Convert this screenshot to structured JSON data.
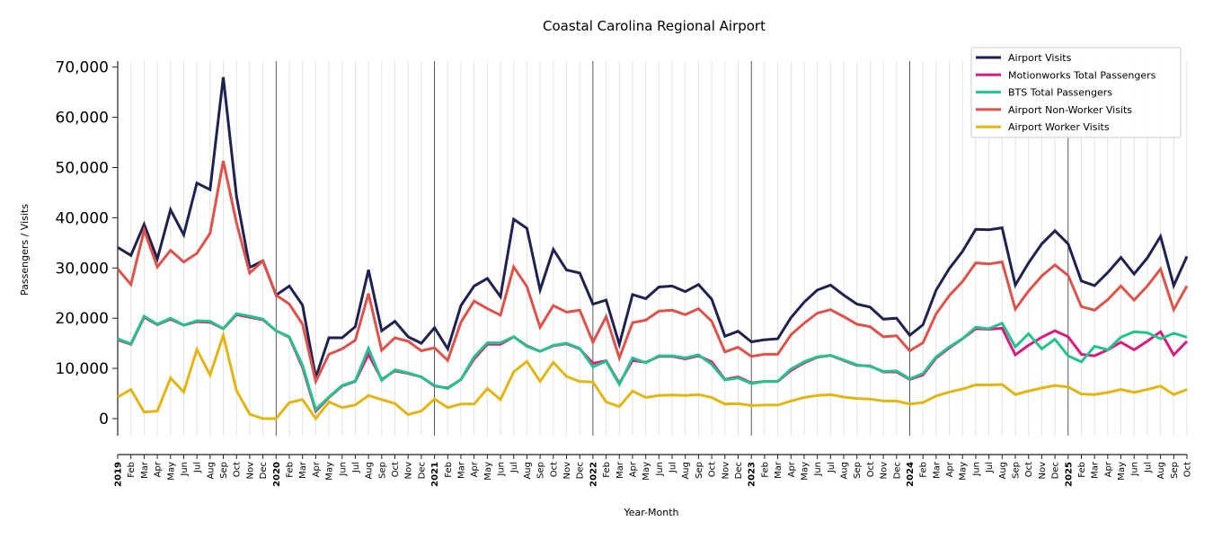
{
  "chart_data": {
    "type": "line",
    "title": "Coastal Carolina Regional Airport",
    "xlabel": "Year-Month",
    "ylabel": "Passengers / Visits",
    "ylim": [
      -3400,
      71200
    ],
    "yticks": [
      0,
      10000,
      20000,
      30000,
      40000,
      50000,
      60000,
      70000
    ],
    "ytick_labels": [
      "0",
      "10,000",
      "20,000",
      "30,000",
      "40,000",
      "50,000",
      "60,000",
      "70,000"
    ],
    "grid": "vertical-monthly",
    "legend_position": "top-right",
    "year_labels": [
      "2019",
      "2020",
      "2021",
      "2022",
      "2023",
      "2024",
      "2025"
    ],
    "x": [
      "2019",
      "Feb",
      "Mar",
      "Apr",
      "May",
      "Jun",
      "Jul",
      "Aug",
      "Sep",
      "Oct",
      "Nov",
      "Dec",
      "2020",
      "Feb",
      "Mar",
      "Apr",
      "May",
      "Jun",
      "Jul",
      "Aug",
      "Sep",
      "Oct",
      "Nov",
      "Dec",
      "2021",
      "Feb",
      "Mar",
      "Apr",
      "May",
      "Jun",
      "Jul",
      "Aug",
      "Sep",
      "Oct",
      "Nov",
      "Dec",
      "2022",
      "Feb",
      "Mar",
      "Apr",
      "May",
      "Jun",
      "Jul",
      "Aug",
      "Sep",
      "Oct",
      "Nov",
      "Dec",
      "2023",
      "Feb",
      "Mar",
      "Apr",
      "May",
      "Jun",
      "Jul",
      "Aug",
      "Sep",
      "Oct",
      "Nov",
      "Dec",
      "2024",
      "Feb",
      "Mar",
      "Apr",
      "May",
      "Jun",
      "Jul",
      "Aug",
      "Sep",
      "Oct",
      "Nov",
      "Dec",
      "2025",
      "Feb",
      "Mar",
      "Apr",
      "May",
      "Jun",
      "Jul",
      "Aug",
      "Sep",
      "Oct"
    ],
    "series": [
      {
        "name": "Airport Visits",
        "color": "#1f2150",
        "values": [
          34100,
          32500,
          38700,
          31800,
          41600,
          36600,
          46900,
          45600,
          68000,
          44300,
          30100,
          31400,
          24600,
          26400,
          22600,
          8200,
          16100,
          16100,
          18300,
          29600,
          17500,
          19400,
          16300,
          15000,
          18100,
          13900,
          22500,
          26400,
          27900,
          24300,
          39700,
          37900,
          25600,
          33700,
          29600,
          29000,
          22800,
          23600,
          14800,
          24700,
          23900,
          26200,
          26400,
          25300,
          26700,
          23800,
          16400,
          17400,
          15300,
          15700,
          15900,
          20100,
          23200,
          25600,
          26600,
          24600,
          22800,
          22200,
          19800,
          20000,
          16600,
          18700,
          25600,
          29900,
          33300,
          37700,
          37600,
          38000,
          26600,
          31000,
          34800,
          37400,
          34800,
          27400,
          26500,
          29100,
          32100,
          28800,
          32000,
          36300,
          26500,
          32300
        ]
      },
      {
        "name": "Motionworks Total Passengers",
        "color": "#d81b7f",
        "values": [
          15700,
          14800,
          20200,
          18700,
          19800,
          18600,
          19300,
          19200,
          17900,
          20700,
          20200,
          19700,
          17500,
          16200,
          10200,
          1500,
          4200,
          6500,
          7400,
          12800,
          7800,
          9500,
          9000,
          8300,
          6500,
          6100,
          7800,
          11900,
          14800,
          14800,
          16300,
          14500,
          13400,
          14500,
          14900,
          13900,
          11000,
          11500,
          7000,
          11600,
          11200,
          12400,
          12400,
          11900,
          12500,
          11300,
          7800,
          8300,
          7100,
          7400,
          7400,
          9600,
          11100,
          12200,
          12600,
          11600,
          10600,
          10500,
          9300,
          9300,
          7800,
          8700,
          12100,
          14100,
          15900,
          17900,
          17800,
          18000,
          12700,
          14600,
          16200,
          17500,
          16300,
          12800,
          12500,
          13700,
          15200,
          13700,
          15400,
          17300,
          12700,
          15400
        ]
      },
      {
        "name": "BTS Total Passengers",
        "color": "#26c28e",
        "values": [
          15900,
          14900,
          20400,
          18800,
          20000,
          18600,
          19500,
          19400,
          17900,
          20900,
          20400,
          19800,
          17500,
          16300,
          10600,
          1800,
          4300,
          6600,
          7500,
          14000,
          7600,
          9700,
          9100,
          8300,
          6600,
          6000,
          7800,
          12300,
          15100,
          15100,
          16300,
          14400,
          13400,
          14600,
          15000,
          14000,
          10300,
          11400,
          6800,
          12100,
          11100,
          12500,
          12500,
          12100,
          12700,
          10800,
          7700,
          8100,
          7000,
          7400,
          7400,
          9900,
          11300,
          12300,
          12600,
          11700,
          10700,
          10400,
          9400,
          9500,
          7900,
          9000,
          12300,
          14300,
          15900,
          18200,
          17900,
          19000,
          14300,
          16900,
          13900,
          15800,
          12500,
          11300,
          14400,
          13700,
          16200,
          17300,
          17100,
          15900,
          17000,
          16200
        ]
      },
      {
        "name": "Airport Non-Worker Visits",
        "color": "#de524b",
        "values": [
          29800,
          26700,
          37500,
          30200,
          33500,
          31200,
          32900,
          36900,
          51300,
          39000,
          29000,
          31400,
          24600,
          22800,
          18800,
          7400,
          12800,
          13900,
          15600,
          24900,
          13600,
          16100,
          15400,
          13500,
          14100,
          11600,
          19200,
          23400,
          21900,
          20600,
          30200,
          26300,
          18200,
          22500,
          21200,
          21600,
          15200,
          20300,
          12100,
          19100,
          19600,
          21400,
          21600,
          20700,
          21900,
          19400,
          13300,
          14200,
          12400,
          12800,
          12800,
          16700,
          19000,
          21000,
          21700,
          20300,
          18800,
          18300,
          16300,
          16500,
          13500,
          15100,
          20900,
          24500,
          27300,
          31000,
          30800,
          31200,
          21800,
          25400,
          28400,
          30600,
          28500,
          22300,
          21600,
          23700,
          26400,
          23600,
          26400,
          29800,
          21700,
          26400
        ]
      },
      {
        "name": "Airport Worker Visits",
        "color": "#e3b512",
        "values": [
          4300,
          5800,
          1300,
          1500,
          8100,
          5300,
          13800,
          8700,
          16600,
          5600,
          900,
          0,
          0,
          3200,
          3800,
          0,
          3300,
          2200,
          2700,
          4600,
          3800,
          3000,
          800,
          1500,
          3900,
          2200,
          2900,
          2900,
          6000,
          3800,
          9300,
          11400,
          7400,
          11200,
          8400,
          7400,
          7300,
          3300,
          2400,
          5500,
          4200,
          4600,
          4700,
          4600,
          4800,
          4200,
          2900,
          3000,
          2600,
          2700,
          2700,
          3500,
          4200,
          4600,
          4800,
          4300,
          4000,
          3900,
          3500,
          3500,
          2900,
          3200,
          4500,
          5300,
          5900,
          6700,
          6700,
          6800,
          4800,
          5500,
          6100,
          6600,
          6300,
          4900,
          4800,
          5200,
          5800,
          5200,
          5800,
          6500,
          4800,
          5800
        ]
      }
    ]
  }
}
